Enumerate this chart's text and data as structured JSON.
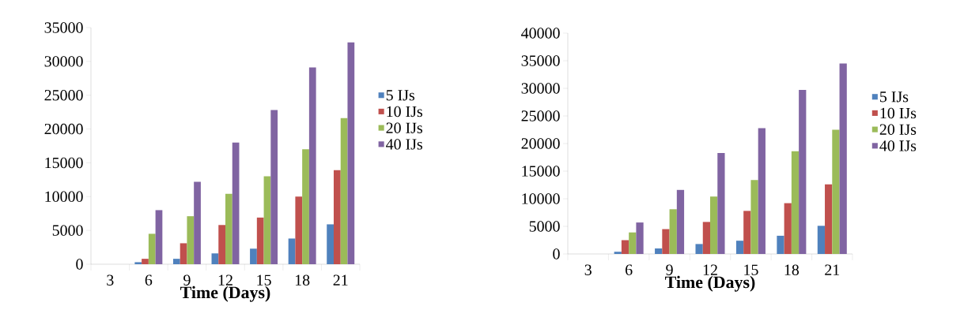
{
  "chart_data": [
    {
      "type": "bar",
      "xlabel": "Time (Days)",
      "categories": [
        "3",
        "6",
        "9",
        "12",
        "15",
        "18",
        "21"
      ],
      "series": [
        {
          "name": "5 IJs",
          "color": "#4f81bd",
          "values": [
            0,
            300,
            800,
            1600,
            2300,
            3800,
            5900
          ]
        },
        {
          "name": "10 IJs",
          "color": "#c0504d",
          "values": [
            0,
            800,
            3100,
            5800,
            6900,
            10000,
            13900
          ]
        },
        {
          "name": "20 IJs",
          "color": "#9bbb59",
          "values": [
            0,
            4500,
            7100,
            10400,
            13000,
            17000,
            21600
          ]
        },
        {
          "name": "40 IJs",
          "color": "#8064a2",
          "values": [
            0,
            8000,
            12200,
            18000,
            22800,
            29100,
            32800
          ]
        }
      ],
      "ylim": [
        0,
        35000
      ],
      "yticks": [
        0,
        5000,
        10000,
        15000,
        20000,
        25000,
        30000,
        35000
      ],
      "legend": "right"
    },
    {
      "type": "bar",
      "xlabel": "Time (Days)",
      "categories": [
        "3",
        "6",
        "9",
        "12",
        "15",
        "18",
        "21"
      ],
      "series": [
        {
          "name": "5 IJs",
          "color": "#4f81bd",
          "values": [
            0,
            400,
            1000,
            1800,
            2400,
            3300,
            5100
          ]
        },
        {
          "name": "10 IJs",
          "color": "#c0504d",
          "values": [
            0,
            2500,
            4500,
            5800,
            7800,
            9200,
            12600
          ]
        },
        {
          "name": "20 IJs",
          "color": "#9bbb59",
          "values": [
            0,
            3900,
            8100,
            10400,
            13400,
            18600,
            22500
          ]
        },
        {
          "name": "40 IJs",
          "color": "#8064a2",
          "values": [
            0,
            5700,
            11600,
            18300,
            22800,
            29700,
            34500
          ]
        }
      ],
      "ylim": [
        0,
        40000
      ],
      "yticks": [
        0,
        5000,
        10000,
        15000,
        20000,
        25000,
        30000,
        35000,
        40000
      ],
      "legend": "right"
    }
  ]
}
